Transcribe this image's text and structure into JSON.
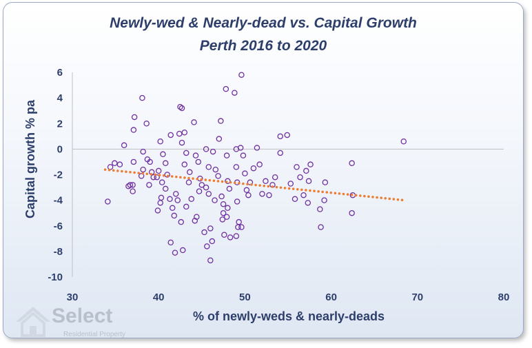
{
  "chart_data": {
    "type": "scatter",
    "title": "Newly-wed & Nearly-dead  vs. Capital Growth",
    "subtitle": "Perth 2016 to 2020",
    "xlabel": "% of newly-weds & nearly-deads",
    "ylabel": "Capital growth % pa",
    "xlim": [
      30,
      80
    ],
    "ylim": [
      -10,
      6
    ],
    "xticks": [
      30,
      40,
      50,
      60,
      70,
      80
    ],
    "yticks": [
      -10,
      -8,
      -6,
      -4,
      -2,
      0,
      2,
      4,
      6
    ],
    "grid": false,
    "legend": "none",
    "colors": {
      "points": "#7030a0",
      "trendline": "#ed7d31",
      "text": "#2d3e6b"
    },
    "trendline": {
      "x": [
        33.8,
        68.5
      ],
      "y": [
        -1.6,
        -4.0
      ]
    },
    "points": [
      [
        38.1,
        4.0
      ],
      [
        36.0,
        0.3
      ],
      [
        35.5,
        -1.2
      ],
      [
        34.9,
        -1.1
      ],
      [
        34.4,
        -1.4
      ],
      [
        34.1,
        -4.1
      ],
      [
        37.2,
        2.5
      ],
      [
        37.1,
        1.5
      ],
      [
        37.1,
        -1.0
      ],
      [
        37.0,
        -2.8
      ],
      [
        37.0,
        -3.3
      ],
      [
        36.7,
        -2.8
      ],
      [
        36.5,
        -2.9
      ],
      [
        38.6,
        2.0
      ],
      [
        38.2,
        -1.6
      ],
      [
        38.0,
        -2.1
      ],
      [
        38.2,
        -0.2
      ],
      [
        38.7,
        -0.8
      ],
      [
        39.0,
        -1.0
      ],
      [
        39.2,
        -1.8
      ],
      [
        39.4,
        -2.2
      ],
      [
        38.9,
        -2.8
      ],
      [
        39.8,
        -2.2
      ],
      [
        40.0,
        -1.7
      ],
      [
        40.2,
        0.6
      ],
      [
        40.5,
        -0.4
      ],
      [
        40.8,
        -1.1
      ],
      [
        40.4,
        -2.6
      ],
      [
        40.8,
        -3.1
      ],
      [
        40.3,
        -3.8
      ],
      [
        39.9,
        -4.8
      ],
      [
        40.2,
        -4.2
      ],
      [
        41.0,
        -2.0
      ],
      [
        41.4,
        1.1
      ],
      [
        41.3,
        -3.9
      ],
      [
        41.6,
        -4.6
      ],
      [
        41.4,
        -7.3
      ],
      [
        41.9,
        -8.1
      ],
      [
        41.8,
        -5.2
      ],
      [
        42.0,
        -3.5
      ],
      [
        42.2,
        -4.0
      ],
      [
        42.4,
        1.2
      ],
      [
        42.7,
        3.2
      ],
      [
        42.5,
        3.3
      ],
      [
        43.0,
        1.3
      ],
      [
        42.7,
        0.5
      ],
      [
        43.2,
        -0.3
      ],
      [
        43.0,
        -1.2
      ],
      [
        42.6,
        -5.7
      ],
      [
        42.8,
        -7.9
      ],
      [
        43.2,
        -4.5
      ],
      [
        43.8,
        -3.9
      ],
      [
        43.6,
        -1.8
      ],
      [
        43.5,
        -2.6
      ],
      [
        44.1,
        2.1
      ],
      [
        44.3,
        -0.5
      ],
      [
        44.6,
        -1.0
      ],
      [
        44.8,
        -2.3
      ],
      [
        44.7,
        -3.3
      ],
      [
        44.4,
        -5.3
      ],
      [
        44.2,
        -5.6
      ],
      [
        45.0,
        -2.8
      ],
      [
        45.5,
        0.0
      ],
      [
        45.8,
        -1.4
      ],
      [
        45.5,
        -3.0
      ],
      [
        45.8,
        -3.5
      ],
      [
        45.3,
        -6.5
      ],
      [
        45.6,
        -7.6
      ],
      [
        46.0,
        -6.2
      ],
      [
        46.2,
        -7.2
      ],
      [
        46.3,
        -0.2
      ],
      [
        46.6,
        -1.6
      ],
      [
        46.5,
        -4.0
      ],
      [
        46.0,
        -8.7
      ],
      [
        46.9,
        -2.1
      ],
      [
        47.0,
        0.8
      ],
      [
        47.2,
        2.2
      ],
      [
        47.3,
        -3.7
      ],
      [
        47.5,
        -4.3
      ],
      [
        47.5,
        -5.0
      ],
      [
        47.4,
        -5.5
      ],
      [
        47.6,
        -6.7
      ],
      [
        47.8,
        4.7
      ],
      [
        47.9,
        -0.5
      ],
      [
        48.0,
        -2.5
      ],
      [
        48.2,
        -3.1
      ],
      [
        48.0,
        -4.6
      ],
      [
        47.9,
        -5.3
      ],
      [
        48.3,
        -6.9
      ],
      [
        48.8,
        4.4
      ],
      [
        49.0,
        0.0
      ],
      [
        49.0,
        -1.4
      ],
      [
        49.1,
        -2.6
      ],
      [
        49.1,
        -4.1
      ],
      [
        49.3,
        -5.7
      ],
      [
        49.2,
        -6.1
      ],
      [
        49.6,
        -6.1
      ],
      [
        49.0,
        -6.8
      ],
      [
        49.6,
        5.8
      ],
      [
        49.5,
        0.1
      ],
      [
        49.8,
        -0.5
      ],
      [
        50.0,
        -1.9
      ],
      [
        50.2,
        -3.2
      ],
      [
        50.4,
        -3.6
      ],
      [
        50.6,
        -2.6
      ],
      [
        51.0,
        -1.5
      ],
      [
        51.4,
        0.1
      ],
      [
        51.7,
        -1.2
      ],
      [
        52.0,
        -3.5
      ],
      [
        52.4,
        -2.5
      ],
      [
        52.8,
        -3.6
      ],
      [
        53.2,
        -2.8
      ],
      [
        53.5,
        -2.2
      ],
      [
        54.1,
        1.0
      ],
      [
        54.1,
        -0.3
      ],
      [
        54.9,
        1.1
      ],
      [
        55.3,
        -2.7
      ],
      [
        55.8,
        -3.9
      ],
      [
        56.0,
        -1.4
      ],
      [
        56.4,
        -2.2
      ],
      [
        56.8,
        -3.6
      ],
      [
        57.1,
        -1.7
      ],
      [
        57.3,
        -4.2
      ],
      [
        57.4,
        -2.5
      ],
      [
        57.6,
        -1.2
      ],
      [
        58.7,
        -4.7
      ],
      [
        58.8,
        -6.1
      ],
      [
        59.3,
        -2.6
      ],
      [
        59.2,
        -4.0
      ],
      [
        62.4,
        -1.1
      ],
      [
        62.5,
        -3.6
      ],
      [
        62.4,
        -5.0
      ],
      [
        68.4,
        0.6
      ]
    ]
  },
  "logo": {
    "name": "Select",
    "tagline": "Residential Property"
  }
}
